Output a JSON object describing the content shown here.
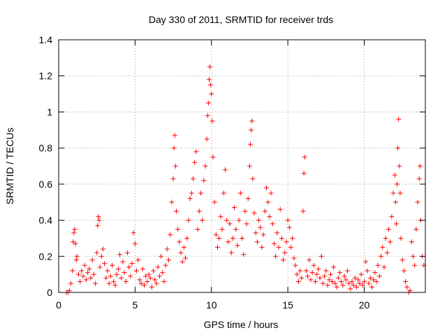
{
  "chart_data": {
    "type": "scatter",
    "title": "Day 330 of 2011, SRMTID for receiver trds",
    "xlabel": "GPS time / hours",
    "ylabel": "SRMTID / TECUs",
    "xlim": [
      0,
      24
    ],
    "ylim": [
      0,
      1.4
    ],
    "xticks": [
      0,
      5,
      10,
      15,
      20
    ],
    "xtick_labels": [
      "0",
      "5",
      "10",
      "15",
      "20"
    ],
    "yticks": [
      0,
      0.2,
      0.4,
      0.6,
      0.8,
      1.0,
      1.2,
      1.4
    ],
    "ytick_labels": [
      "0",
      "0.2",
      "0.4",
      "0.6",
      "0.8",
      "1",
      "1.2",
      "1.4"
    ],
    "grid": true,
    "marker": "+",
    "color": "#ff0000",
    "series": [
      {
        "name": "SRMTID",
        "points": [
          [
            0.5,
            0.0
          ],
          [
            0.6,
            0.0
          ],
          [
            0.7,
            0.01
          ],
          [
            0.8,
            0.05
          ],
          [
            0.9,
            0.12
          ],
          [
            0.95,
            0.28
          ],
          [
            1.0,
            0.33
          ],
          [
            1.05,
            0.35
          ],
          [
            1.1,
            0.27
          ],
          [
            1.15,
            0.18
          ],
          [
            1.2,
            0.2
          ],
          [
            1.3,
            0.1
          ],
          [
            1.4,
            0.06
          ],
          [
            1.5,
            0.12
          ],
          [
            1.6,
            0.09
          ],
          [
            1.7,
            0.15
          ],
          [
            1.8,
            0.07
          ],
          [
            1.9,
            0.11
          ],
          [
            2.0,
            0.13
          ],
          [
            2.1,
            0.08
          ],
          [
            2.2,
            0.18
          ],
          [
            2.3,
            0.1
          ],
          [
            2.4,
            0.05
          ],
          [
            2.5,
            0.22
          ],
          [
            2.55,
            0.37
          ],
          [
            2.6,
            0.42
          ],
          [
            2.65,
            0.4
          ],
          [
            2.7,
            0.14
          ],
          [
            2.8,
            0.2
          ],
          [
            2.9,
            0.24
          ],
          [
            3.0,
            0.16
          ],
          [
            3.1,
            0.08
          ],
          [
            3.2,
            0.12
          ],
          [
            3.3,
            0.05
          ],
          [
            3.4,
            0.09
          ],
          [
            3.5,
            0.15
          ],
          [
            3.6,
            0.06
          ],
          [
            3.7,
            0.04
          ],
          [
            3.8,
            0.1
          ],
          [
            3.9,
            0.13
          ],
          [
            4.0,
            0.21
          ],
          [
            4.1,
            0.08
          ],
          [
            4.2,
            0.17
          ],
          [
            4.3,
            0.11
          ],
          [
            4.4,
            0.06
          ],
          [
            4.5,
            0.22
          ],
          [
            4.6,
            0.14
          ],
          [
            4.7,
            0.09
          ],
          [
            4.8,
            0.16
          ],
          [
            4.9,
            0.33
          ],
          [
            5.0,
            0.27
          ],
          [
            5.1,
            0.12
          ],
          [
            5.2,
            0.18
          ],
          [
            5.3,
            0.07
          ],
          [
            5.4,
            0.05
          ],
          [
            5.5,
            0.13
          ],
          [
            5.6,
            0.04
          ],
          [
            5.7,
            0.09
          ],
          [
            5.8,
            0.06
          ],
          [
            5.9,
            0.1
          ],
          [
            6.0,
            0.08
          ],
          [
            6.1,
            0.03
          ],
          [
            6.2,
            0.12
          ],
          [
            6.3,
            0.07
          ],
          [
            6.4,
            0.05
          ],
          [
            6.5,
            0.14
          ],
          [
            6.6,
            0.09
          ],
          [
            6.7,
            0.2
          ],
          [
            6.8,
            0.11
          ],
          [
            6.9,
            0.06
          ],
          [
            7.0,
            0.15
          ],
          [
            7.1,
            0.24
          ],
          [
            7.2,
            0.18
          ],
          [
            7.3,
            0.32
          ],
          [
            7.4,
            0.5
          ],
          [
            7.5,
            0.63
          ],
          [
            7.55,
            0.8
          ],
          [
            7.6,
            0.87
          ],
          [
            7.65,
            0.7
          ],
          [
            7.7,
            0.45
          ],
          [
            7.8,
            0.35
          ],
          [
            7.9,
            0.28
          ],
          [
            8.0,
            0.22
          ],
          [
            8.1,
            0.17
          ],
          [
            8.2,
            0.25
          ],
          [
            8.3,
            0.19
          ],
          [
            8.4,
            0.3
          ],
          [
            8.5,
            0.4
          ],
          [
            8.6,
            0.52
          ],
          [
            8.7,
            0.55
          ],
          [
            8.8,
            0.63
          ],
          [
            8.9,
            0.72
          ],
          [
            9.0,
            0.78
          ],
          [
            9.1,
            0.35
          ],
          [
            9.2,
            0.45
          ],
          [
            9.3,
            0.55
          ],
          [
            9.4,
            0.4
          ],
          [
            9.5,
            0.62
          ],
          [
            9.6,
            0.7
          ],
          [
            9.7,
            0.85
          ],
          [
            9.75,
            0.98
          ],
          [
            9.8,
            1.05
          ],
          [
            9.85,
            1.18
          ],
          [
            9.9,
            1.25
          ],
          [
            9.95,
            1.15
          ],
          [
            10.0,
            1.1
          ],
          [
            10.05,
            0.95
          ],
          [
            10.1,
            0.75
          ],
          [
            10.2,
            0.5
          ],
          [
            10.3,
            0.32
          ],
          [
            10.4,
            0.25
          ],
          [
            10.5,
            0.3
          ],
          [
            10.6,
            0.42
          ],
          [
            10.7,
            0.35
          ],
          [
            10.8,
            0.55
          ],
          [
            10.9,
            0.68
          ],
          [
            11.0,
            0.4
          ],
          [
            11.1,
            0.28
          ],
          [
            11.2,
            0.38
          ],
          [
            11.3,
            0.22
          ],
          [
            11.4,
            0.3
          ],
          [
            11.5,
            0.47
          ],
          [
            11.6,
            0.35
          ],
          [
            11.7,
            0.26
          ],
          [
            11.8,
            0.4
          ],
          [
            11.9,
            0.55
          ],
          [
            12.0,
            0.3
          ],
          [
            12.1,
            0.21
          ],
          [
            12.2,
            0.45
          ],
          [
            12.3,
            0.38
          ],
          [
            12.4,
            0.52
          ],
          [
            12.5,
            0.7
          ],
          [
            12.55,
            0.82
          ],
          [
            12.6,
            0.9
          ],
          [
            12.65,
            0.95
          ],
          [
            12.7,
            0.63
          ],
          [
            12.8,
            0.44
          ],
          [
            12.9,
            0.33
          ],
          [
            13.0,
            0.28
          ],
          [
            13.1,
            0.4
          ],
          [
            13.2,
            0.36
          ],
          [
            13.3,
            0.25
          ],
          [
            13.4,
            0.32
          ],
          [
            13.5,
            0.45
          ],
          [
            13.6,
            0.58
          ],
          [
            13.7,
            0.5
          ],
          [
            13.8,
            0.42
          ],
          [
            13.9,
            0.55
          ],
          [
            14.0,
            0.38
          ],
          [
            14.1,
            0.27
          ],
          [
            14.2,
            0.2
          ],
          [
            14.3,
            0.33
          ],
          [
            14.4,
            0.25
          ],
          [
            14.5,
            0.46
          ],
          [
            14.6,
            0.3
          ],
          [
            14.7,
            0.18
          ],
          [
            14.8,
            0.22
          ],
          [
            14.9,
            0.28
          ],
          [
            15.0,
            0.4
          ],
          [
            15.1,
            0.36
          ],
          [
            15.2,
            0.25
          ],
          [
            15.3,
            0.3
          ],
          [
            15.4,
            0.19
          ],
          [
            15.5,
            0.15
          ],
          [
            15.6,
            0.1
          ],
          [
            15.7,
            0.06
          ],
          [
            15.8,
            0.12
          ],
          [
            15.9,
            0.08
          ],
          [
            16.0,
            0.45
          ],
          [
            16.05,
            0.66
          ],
          [
            16.1,
            0.75
          ],
          [
            16.2,
            0.12
          ],
          [
            16.3,
            0.09
          ],
          [
            16.4,
            0.18
          ],
          [
            16.5,
            0.07
          ],
          [
            16.6,
            0.11
          ],
          [
            16.7,
            0.15
          ],
          [
            16.8,
            0.06
          ],
          [
            16.9,
            0.1
          ],
          [
            17.0,
            0.13
          ],
          [
            17.1,
            0.08
          ],
          [
            17.2,
            0.2
          ],
          [
            17.3,
            0.05
          ],
          [
            17.4,
            0.09
          ],
          [
            17.5,
            0.12
          ],
          [
            17.6,
            0.04
          ],
          [
            17.7,
            0.07
          ],
          [
            17.8,
            0.1
          ],
          [
            17.9,
            0.06
          ],
          [
            18.0,
            0.14
          ],
          [
            18.1,
            0.05
          ],
          [
            18.2,
            0.03
          ],
          [
            18.3,
            0.08
          ],
          [
            18.4,
            0.11
          ],
          [
            18.5,
            0.06
          ],
          [
            18.6,
            0.04
          ],
          [
            18.7,
            0.09
          ],
          [
            18.8,
            0.07
          ],
          [
            18.9,
            0.12
          ],
          [
            19.0,
            0.05
          ],
          [
            19.1,
            0.02
          ],
          [
            19.2,
            0.06
          ],
          [
            19.3,
            0.04
          ],
          [
            19.4,
            0.08
          ],
          [
            19.5,
            0.03
          ],
          [
            19.6,
            0.07
          ],
          [
            19.7,
            0.05
          ],
          [
            19.8,
            0.1
          ],
          [
            19.9,
            0.04
          ],
          [
            20.0,
            0.06
          ],
          [
            20.1,
            0.17
          ],
          [
            20.2,
            0.12
          ],
          [
            20.3,
            0.05
          ],
          [
            20.4,
            0.08
          ],
          [
            20.5,
            0.03
          ],
          [
            20.6,
            0.07
          ],
          [
            20.7,
            0.11
          ],
          [
            20.8,
            0.06
          ],
          [
            20.9,
            0.15
          ],
          [
            21.0,
            0.09
          ],
          [
            21.1,
            0.2
          ],
          [
            21.2,
            0.25
          ],
          [
            21.3,
            0.14
          ],
          [
            21.4,
            0.3
          ],
          [
            21.5,
            0.22
          ],
          [
            21.6,
            0.35
          ],
          [
            21.7,
            0.28
          ],
          [
            21.8,
            0.42
          ],
          [
            21.9,
            0.55
          ],
          [
            22.0,
            0.65
          ],
          [
            22.05,
            0.5
          ],
          [
            22.1,
            0.38
          ],
          [
            22.15,
            0.6
          ],
          [
            22.2,
            0.8
          ],
          [
            22.25,
            0.96
          ],
          [
            22.3,
            0.7
          ],
          [
            22.35,
            0.55
          ],
          [
            22.4,
            0.3
          ],
          [
            22.5,
            0.18
          ],
          [
            22.6,
            0.12
          ],
          [
            22.7,
            0.06
          ],
          [
            22.8,
            0.03
          ],
          [
            22.9,
            0.0
          ],
          [
            23.0,
            0.01
          ],
          [
            23.1,
            0.28
          ],
          [
            23.2,
            0.2
          ],
          [
            23.3,
            0.15
          ],
          [
            23.4,
            0.35
          ],
          [
            23.5,
            0.5
          ],
          [
            23.6,
            0.63
          ],
          [
            23.65,
            0.7
          ],
          [
            23.7,
            0.4
          ],
          [
            23.8,
            0.2
          ],
          [
            23.9,
            0.15
          ]
        ]
      }
    ]
  }
}
